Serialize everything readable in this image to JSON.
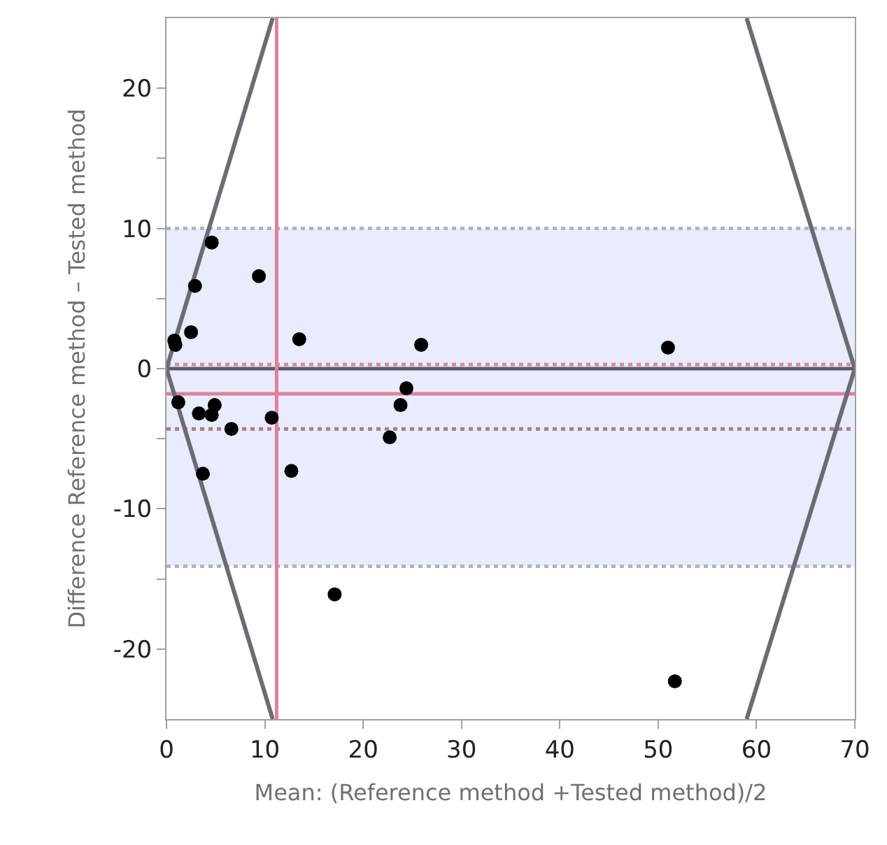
{
  "chart_data": {
    "type": "scatter",
    "xlabel": "Mean: (Reference method +Tested method)/2",
    "ylabel": "Difference Reference method – Tested method",
    "xlim": [
      0,
      70
    ],
    "ylim": [
      -25,
      25
    ],
    "xticks": [
      0,
      10,
      20,
      30,
      40,
      50,
      60,
      70
    ],
    "yticks": [
      -20,
      {
        "value": -15,
        "label": null
      },
      -10,
      {
        "value": -5,
        "label": null
      },
      0,
      {
        "value": 5,
        "label": null
      },
      10,
      {
        "value": 15,
        "label": null
      },
      20
    ],
    "grid": false,
    "marker": "circle",
    "x": [
      4.6,
      9.4,
      2.9,
      2.5,
      0.8,
      0.9,
      13.5,
      25.9,
      51.0,
      1.2,
      3.3,
      4.6,
      4.9,
      6.6,
      10.7,
      3.7,
      12.7,
      22.7,
      23.8,
      24.4,
      17.1,
      51.7
    ],
    "series": [
      {
        "color": "#000000",
        "values": [
          9.0,
          6.6,
          5.9,
          2.6,
          2.0,
          1.7,
          2.1,
          1.7,
          1.5,
          -2.4,
          -3.2,
          -3.3,
          -2.6,
          -4.3,
          -3.5,
          -7.5,
          -7.3,
          -4.9,
          -2.6,
          -1.4,
          -16.1,
          -22.3
        ]
      },
      {
        "type": "line",
        "color": "#6b6b73",
        "marker": "none",
        "line_style": "solid",
        "x": [
          10.8,
          0,
          10.8
        ],
        "values": [
          25,
          0,
          -25
        ]
      },
      {
        "type": "line",
        "color": "#6b6b73",
        "marker": "none",
        "line_style": "solid",
        "x": [
          59,
          70,
          59
        ],
        "values": [
          25,
          0,
          -25
        ]
      }
    ],
    "bands": [
      {
        "axis": "y",
        "from": -14.1,
        "to": 10,
        "color": "#e8ecfc"
      }
    ],
    "ref_lines": [
      {
        "axis": "y",
        "value": 10,
        "color": "#b4b4be",
        "line_style": "dotted"
      },
      {
        "axis": "y",
        "value": -14.1,
        "color": "#b4b4be",
        "line_style": "dotted"
      },
      {
        "axis": "y",
        "value": 0.3,
        "color": "#d88aa0",
        "line_style": "dotted"
      },
      {
        "axis": "y",
        "value": -4.3,
        "color": "#b07890",
        "line_style": "dotted"
      },
      {
        "axis": "y",
        "value": 0,
        "color": "#5e5868",
        "line_style": "solid"
      },
      {
        "axis": "y",
        "value": -1.8,
        "color": "#e0809a",
        "line_style": "solid"
      },
      {
        "axis": "x",
        "value": 11.2,
        "color": "#e0809a",
        "line_style": "solid"
      }
    ]
  }
}
